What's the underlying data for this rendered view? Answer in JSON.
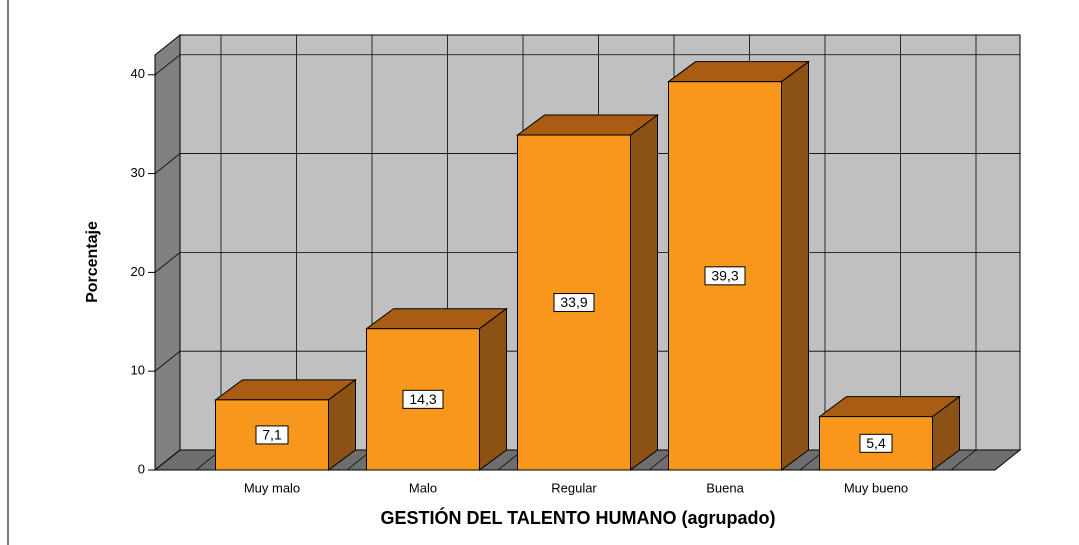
{
  "chart_data": {
    "type": "bar3d",
    "x_label": "GESTIÓN DEL TALENTO HUMANO (agrupado)",
    "y_label": "Porcentaje",
    "categories": [
      "Muy malo",
      "Malo",
      "Regular",
      "Buena",
      "Muy bueno"
    ],
    "values": [
      7.1,
      14.3,
      33.9,
      39.3,
      5.4
    ],
    "value_labels": [
      "7,1",
      "14,3",
      "33,9",
      "39,3",
      "5,4"
    ],
    "color": "#f7981d",
    "ylim": [
      0,
      42
    ],
    "yticks": [
      0,
      10,
      20,
      30,
      40
    ],
    "grid": true
  }
}
